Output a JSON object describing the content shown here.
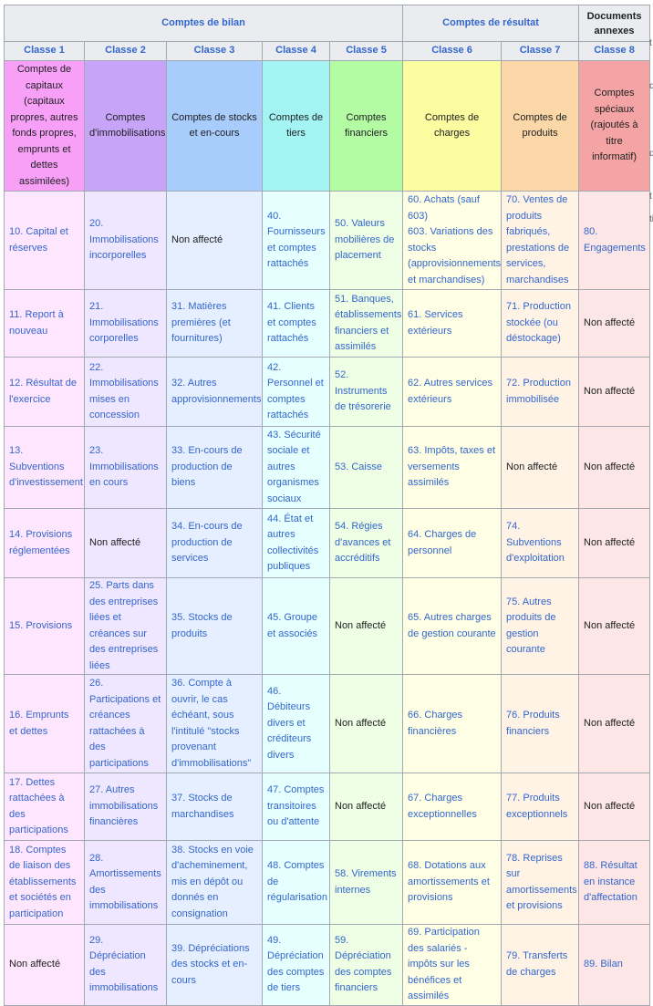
{
  "groups": {
    "bilan": "Comptes de bilan",
    "resultat": "Comptes de résultat",
    "annexes": "Documents annexes"
  },
  "classes": [
    "Classe 1",
    "Classe 2",
    "Classe 3",
    "Classe 4",
    "Classe 5",
    "Classe 6",
    "Classe 7",
    "Classe 8"
  ],
  "descriptions": [
    "Comptes de capitaux (capitaux propres, autres fonds propres, emprunts et dettes assimilées)",
    "Comptes d'immobilisations",
    "Comptes de stocks et en-cours",
    "Comptes de tiers",
    "Comptes financiers",
    "Comptes de charges",
    "Comptes de produits",
    "Comptes spéciaux (rajoutés à titre informatif)"
  ],
  "not_assigned": "Non affecté",
  "rows": [
    [
      "10. Capital et réserves",
      "20. Immobilisations incorporelles",
      "Non affecté",
      "40. Fournisseurs et comptes rattachés",
      "50. Valeurs mobilières de placement",
      "60. Achats (sauf 603)\n603. Variations des stocks (approvisionnements et marchandises)",
      "70. Ventes de produits fabriqués, prestations de services, marchandises",
      "80. Engagements"
    ],
    [
      "11. Report à nouveau",
      "21. Immobilisations corporelles",
      "31. Matières premières (et fournitures)",
      "41. Clients et comptes rattachés",
      "51. Banques, établissements financiers et assimilés",
      "61. Services extérieurs",
      "71. Production stockée (ou déstockage)",
      "Non affecté"
    ],
    [
      "12. Résultat de l'exercice",
      "22. Immobilisations mises en concession",
      "32. Autres approvisionnements",
      "42. Personnel et comptes rattachés",
      "52. Instruments de trésorerie",
      "62. Autres services extérieurs",
      "72. Production immobilisée",
      "Non affecté"
    ],
    [
      "13. Subventions d'investissement",
      "23. Immobilisations en cours",
      "33. En-cours de production de biens",
      "43. Sécurité sociale et autres organismes sociaux",
      "53. Caisse",
      "63. Impôts, taxes et versements assimilés",
      "Non affecté",
      "Non affecté"
    ],
    [
      "14. Provisions réglementées",
      "Non affecté",
      "34. En-cours de production de services",
      "44. État et autres collectivités publiques",
      "54. Régies d'avances et accréditifs",
      "64. Charges de personnel",
      "74. Subventions d'exploitation",
      "Non affecté"
    ],
    [
      "15. Provisions",
      "25. Parts dans des entreprises liées et créances sur des entreprises liées",
      "35. Stocks de produits",
      "45. Groupe et associés",
      "Non affecté",
      "65. Autres charges de gestion courante",
      "75. Autres produits de gestion courante",
      "Non affecté"
    ],
    [
      "16. Emprunts et dettes",
      "26. Participations et créances rattachées à des participations",
      "36. Compte à ouvrir, le cas échéant, sous l'intitulé \"stocks provenant d'immobilisations\"",
      "46. Débiteurs divers et créditeurs divers",
      "Non affecté",
      "66. Charges financières",
      "76. Produits financiers",
      "Non affecté"
    ],
    [
      "17. Dettes rattachées à des participations",
      "27. Autres immobilisations financières",
      "37. Stocks de marchandises",
      "47. Comptes transitoires ou d'attente",
      "Non affecté",
      "67. Charges exceptionnelles",
      "77. Produits exceptionnels",
      "Non affecté"
    ],
    [
      "18. Comptes de liaison des établissements et sociétés en participation",
      "28. Amortissements des immobilisations",
      "38. Stocks en voie d'acheminement, mis en dépôt ou donnés en consignation",
      "48. Comptes de régularisation",
      "58. Virements internes",
      "68. Dotations aux amortissements et provisions",
      "78. Reprises sur amortissements et provisions",
      "88. Résultat en instance d'affectation"
    ],
    [
      "Non affecté",
      "29. Dépréciation des immobilisations",
      "39. Dépréciations des stocks et en-cours",
      "49. Dépréciation des comptes de tiers",
      "59. Dépréciation des comptes financiers",
      "69. Participation des salariés - impôts sur les bénéfices et assimilés",
      "79. Transferts de charges",
      "89. Bilan"
    ]
  ],
  "edge_fragments": [
    "t",
    "d",
    "d",
    "t",
    "ti"
  ]
}
